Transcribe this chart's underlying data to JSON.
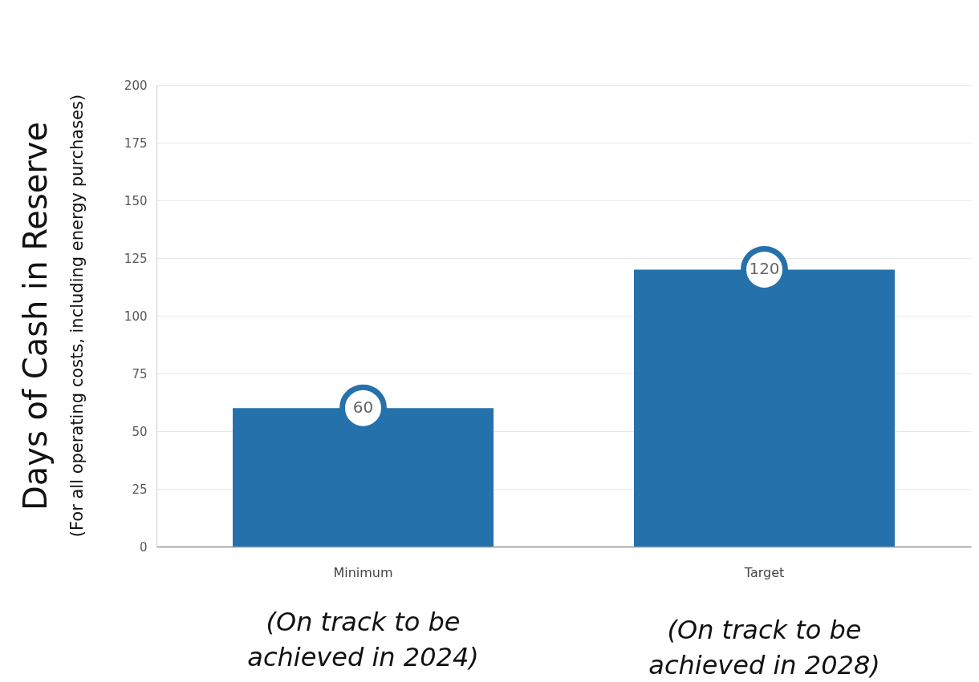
{
  "chart_data": {
    "type": "bar",
    "ylabel": "Days of Cash in Reserve",
    "subtitle": "(For all operating costs, including energy purchases)",
    "categories": [
      "Minimum",
      "Target"
    ],
    "values": [
      60,
      120
    ],
    "color": "#2471ab",
    "ylim": [
      0,
      200
    ],
    "yticks": [
      0,
      25,
      50,
      75,
      100,
      125,
      150,
      175,
      200
    ],
    "grid": "y",
    "data_labels": true,
    "annotations": [
      "(On track to be achieved in 2024)",
      "(On track to be achieved in 2028)"
    ]
  }
}
